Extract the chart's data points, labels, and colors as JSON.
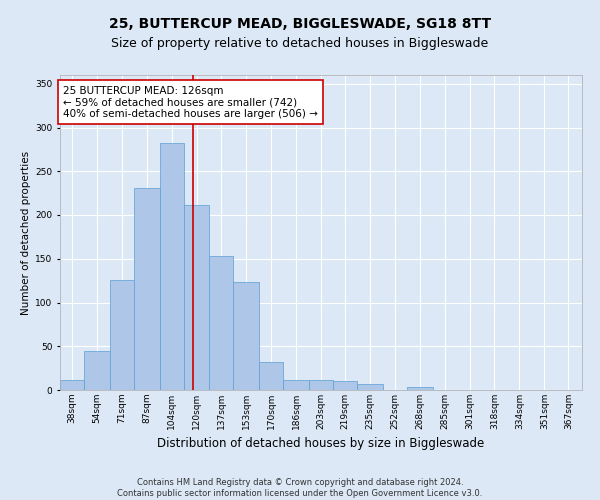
{
  "title": "25, BUTTERCUP MEAD, BIGGLESWADE, SG18 8TT",
  "subtitle": "Size of property relative to detached houses in Biggleswade",
  "xlabel": "Distribution of detached houses by size in Biggleswade",
  "ylabel": "Number of detached properties",
  "categories": [
    "38sqm",
    "54sqm",
    "71sqm",
    "87sqm",
    "104sqm",
    "120sqm",
    "137sqm",
    "153sqm",
    "170sqm",
    "186sqm",
    "203sqm",
    "219sqm",
    "235sqm",
    "252sqm",
    "268sqm",
    "285sqm",
    "301sqm",
    "318sqm",
    "334sqm",
    "351sqm",
    "367sqm"
  ],
  "values": [
    12,
    45,
    126,
    231,
    282,
    211,
    153,
    124,
    32,
    11,
    11,
    10,
    7,
    0,
    3,
    0,
    0,
    0,
    0,
    0,
    0
  ],
  "bar_color": "#aec6e8",
  "bar_edge_color": "#5a9fd4",
  "property_line_x": 126,
  "property_line_color": "#cc0000",
  "annotation_text": "25 BUTTERCUP MEAD: 126sqm\n← 59% of detached houses are smaller (742)\n40% of semi-detached houses are larger (506) →",
  "annotation_box_color": "#ffffff",
  "annotation_box_edge_color": "#cc0000",
  "ylim": [
    0,
    360
  ],
  "yticks": [
    0,
    50,
    100,
    150,
    200,
    250,
    300,
    350
  ],
  "footer_line1": "Contains HM Land Registry data © Crown copyright and database right 2024.",
  "footer_line2": "Contains public sector information licensed under the Open Government Licence v3.0.",
  "background_color": "#dce8f5",
  "plot_bg_color": "#dce8f5",
  "grid_color": "#ffffff",
  "title_fontsize": 10,
  "subtitle_fontsize": 9,
  "xlabel_fontsize": 8.5,
  "ylabel_fontsize": 7.5,
  "tick_fontsize": 6.5,
  "footer_fontsize": 6,
  "annotation_fontsize": 7.5,
  "left_edges": [
    38,
    54,
    71,
    87,
    104,
    120,
    137,
    153,
    170,
    186,
    203,
    219,
    235,
    252,
    268,
    285,
    301,
    318,
    334,
    351,
    367
  ]
}
